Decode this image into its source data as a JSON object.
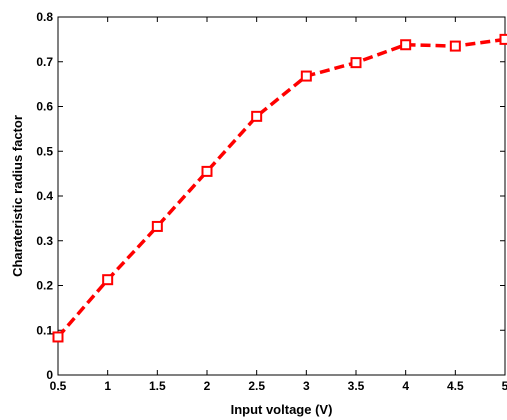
{
  "chart_data": {
    "type": "line",
    "title": "",
    "xlabel": "Input voltage (V)",
    "ylabel": "Charateristic radius factor",
    "xlim": [
      0.5,
      5
    ],
    "ylim": [
      0,
      0.8
    ],
    "x_ticks": [
      "0.5",
      "1",
      "1.5",
      "2",
      "2.5",
      "3",
      "3.5",
      "4",
      "4.5",
      "5"
    ],
    "y_ticks": [
      "0",
      "0.1",
      "0.2",
      "0.3",
      "0.4",
      "0.5",
      "0.6",
      "0.7",
      "0.8"
    ],
    "grid": false,
    "legend": "none",
    "series": [
      {
        "line_style": "dashed",
        "marker": "square",
        "color": "#ff0000",
        "x": [
          0.5,
          1,
          1.5,
          2,
          2.5,
          3,
          3.5,
          4,
          4.5,
          5
        ],
        "y": [
          0.085,
          0.213,
          0.332,
          0.455,
          0.578,
          0.668,
          0.698,
          0.738,
          0.735,
          0.75
        ]
      }
    ]
  }
}
